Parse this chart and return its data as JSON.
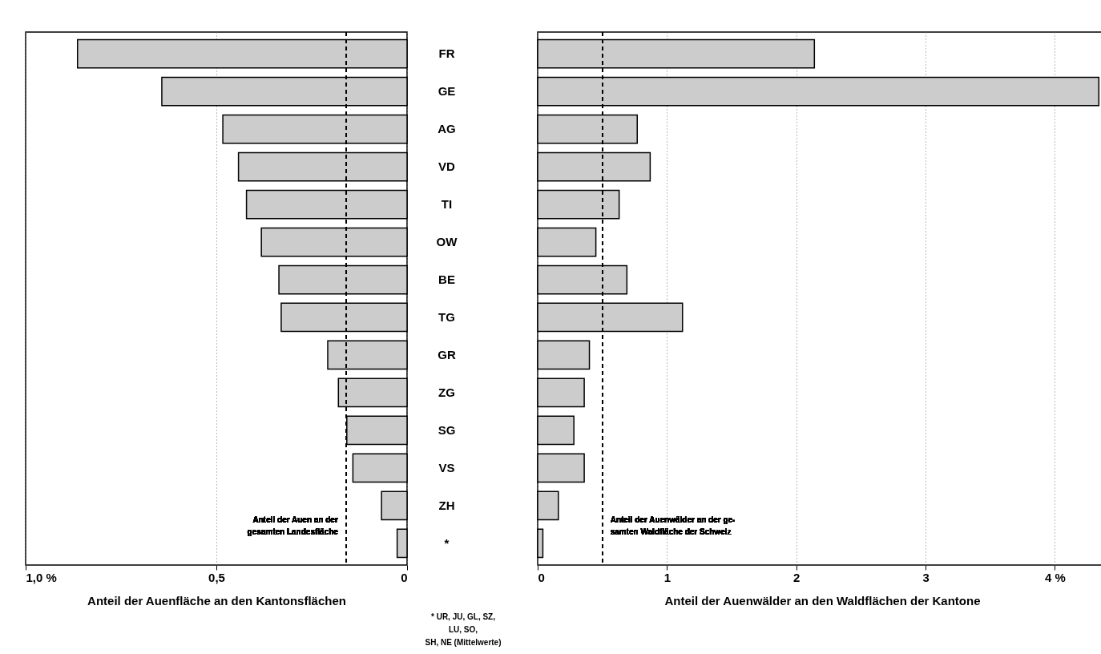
{
  "chart_data": [
    {
      "type": "bar",
      "orientation": "horizontal",
      "xlabel": "Anteil der Auenfläche an den Kantonsflächen",
      "categories": [
        "FR",
        "GE",
        "AG",
        "VD",
        "TI",
        "OW",
        "BE",
        "TG",
        "GR",
        "ZG",
        "SG",
        "VS",
        "ZH",
        "*"
      ],
      "values": [
        0.864,
        0.643,
        0.483,
        0.442,
        0.421,
        0.382,
        0.336,
        0.33,
        0.208,
        0.18,
        0.158,
        0.142,
        0.067,
        0.026
      ],
      "color": "#cccccc",
      "xlim": [
        1.0,
        0
      ],
      "xticks": [
        {
          "value": 1.0,
          "label": "1,0 %"
        },
        {
          "value": 0.5,
          "label": "0,5"
        },
        0
      ],
      "grid": "x",
      "ref_lines": [
        {
          "axis": "x",
          "value": 0.16,
          "label": "Anteil der Auen an der\ngesamten Landesfläche",
          "line_style": "dashed"
        }
      ],
      "annotations": [
        "* UR, JU, GL, SZ, LU, SO,\nSH, NE (Mittelwerte)"
      ]
    },
    {
      "type": "bar",
      "orientation": "horizontal",
      "xlabel": "Anteil der Auenwälder an den Waldflächen der Kantone",
      "categories": [
        "FR",
        "GE",
        "AG",
        "VD",
        "TI",
        "OW",
        "BE",
        "TG",
        "GR",
        "ZG",
        "SG",
        "VS",
        "ZH",
        "*"
      ],
      "values": [
        2.14,
        4.34,
        0.77,
        0.87,
        0.63,
        0.45,
        0.69,
        1.12,
        0.4,
        0.36,
        0.28,
        0.36,
        0.16,
        0.04
      ],
      "color": "#cccccc",
      "xlim": [
        0,
        4.4
      ],
      "xticks": [
        0,
        1,
        2,
        3,
        {
          "value": 4,
          "label": "4 %"
        }
      ],
      "grid": "x",
      "tick_labels": "x",
      "ref_lines": [
        {
          "axis": "x",
          "value": 0.5,
          "label": "Anteil der Auenwälder an der ge-\nsamten Waldfläche der Schweiz",
          "line_style": "dashed"
        }
      ]
    }
  ]
}
